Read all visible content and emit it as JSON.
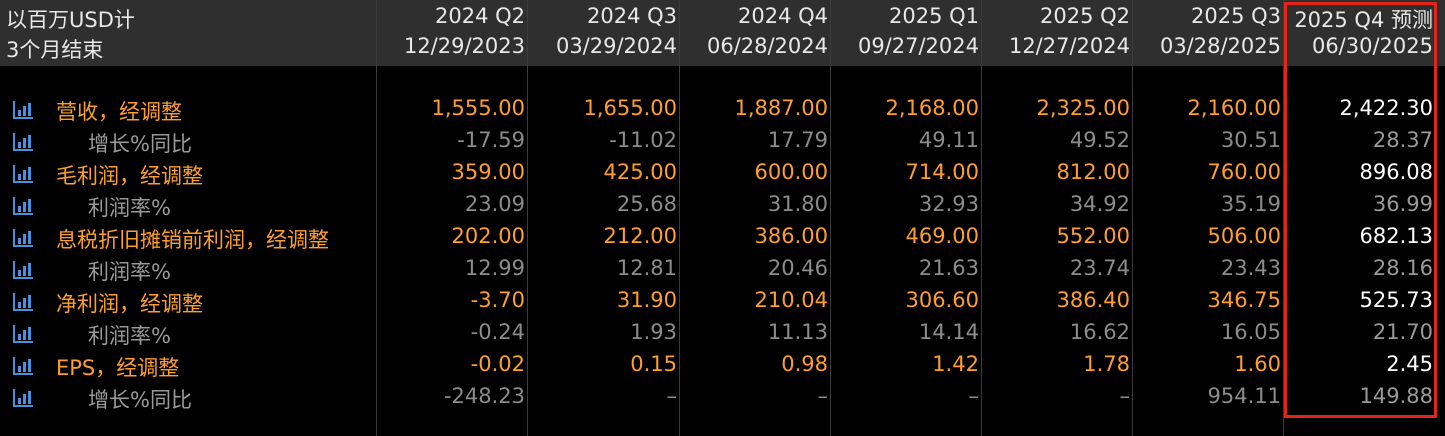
{
  "header": {
    "unit_label": "以百万USD计",
    "period_label": "3个月结束",
    "columns": [
      {
        "quarter": "2024 Q2",
        "date": "12/29/2023"
      },
      {
        "quarter": "2024 Q3",
        "date": "03/29/2024"
      },
      {
        "quarter": "2024 Q4",
        "date": "06/28/2024"
      },
      {
        "quarter": "2025 Q1",
        "date": "09/27/2024"
      },
      {
        "quarter": "2025 Q2",
        "date": "12/27/2024"
      },
      {
        "quarter": "2025 Q3",
        "date": "03/28/2025"
      },
      {
        "quarter": "2025 Q4 预测",
        "date": "06/30/2025"
      }
    ]
  },
  "rows": [
    {
      "label": "营收，经调整",
      "kind": "main",
      "icon": "bar-chart-icon",
      "values": [
        "1,555.00",
        "1,655.00",
        "1,887.00",
        "2,168.00",
        "2,325.00",
        "2,160.00",
        "2,422.30"
      ]
    },
    {
      "label": "增长%同比",
      "kind": "sub",
      "icon": "bar-chart-icon",
      "values": [
        "-17.59",
        "-11.02",
        "17.79",
        "49.11",
        "49.52",
        "30.51",
        "28.37"
      ]
    },
    {
      "label": "毛利润，经调整",
      "kind": "main",
      "icon": "bar-chart-icon",
      "values": [
        "359.00",
        "425.00",
        "600.00",
        "714.00",
        "812.00",
        "760.00",
        "896.08"
      ]
    },
    {
      "label": "利润率%",
      "kind": "sub",
      "icon": "bar-chart-icon",
      "values": [
        "23.09",
        "25.68",
        "31.80",
        "32.93",
        "34.92",
        "35.19",
        "36.99"
      ]
    },
    {
      "label": "息税折旧摊销前利润，经调整",
      "kind": "main",
      "icon": "bar-chart-icon",
      "values": [
        "202.00",
        "212.00",
        "386.00",
        "469.00",
        "552.00",
        "506.00",
        "682.13"
      ]
    },
    {
      "label": "利润率%",
      "kind": "sub",
      "icon": "bar-chart-icon",
      "values": [
        "12.99",
        "12.81",
        "20.46",
        "21.63",
        "23.74",
        "23.43",
        "28.16"
      ]
    },
    {
      "label": "净利润，经调整",
      "kind": "main",
      "icon": "bar-chart-icon",
      "values": [
        "-3.70",
        "31.90",
        "210.04",
        "306.60",
        "386.40",
        "346.75",
        "525.73"
      ]
    },
    {
      "label": "利润率%",
      "kind": "sub",
      "icon": "bar-chart-icon",
      "values": [
        "-0.24",
        "1.93",
        "11.13",
        "14.14",
        "16.62",
        "16.05",
        "21.70"
      ]
    },
    {
      "label": "EPS，经调整",
      "kind": "main",
      "icon": "bar-chart-icon",
      "values": [
        "-0.02",
        "0.15",
        "0.98",
        "1.42",
        "1.78",
        "1.60",
        "2.45"
      ]
    },
    {
      "label": "增长%同比",
      "kind": "sub",
      "icon": "bar-chart-icon",
      "values": [
        "-248.23",
        "–",
        "–",
        "–",
        "–",
        "954.11",
        "149.88"
      ]
    }
  ],
  "colors": {
    "header_bg": "#2f2f2f",
    "main_text": "#ff9e2c",
    "sub_text": "#8c8c8c",
    "forecast_text": "#ffffff",
    "highlight_border": "#e3241b",
    "icon": "#4a90e2"
  }
}
